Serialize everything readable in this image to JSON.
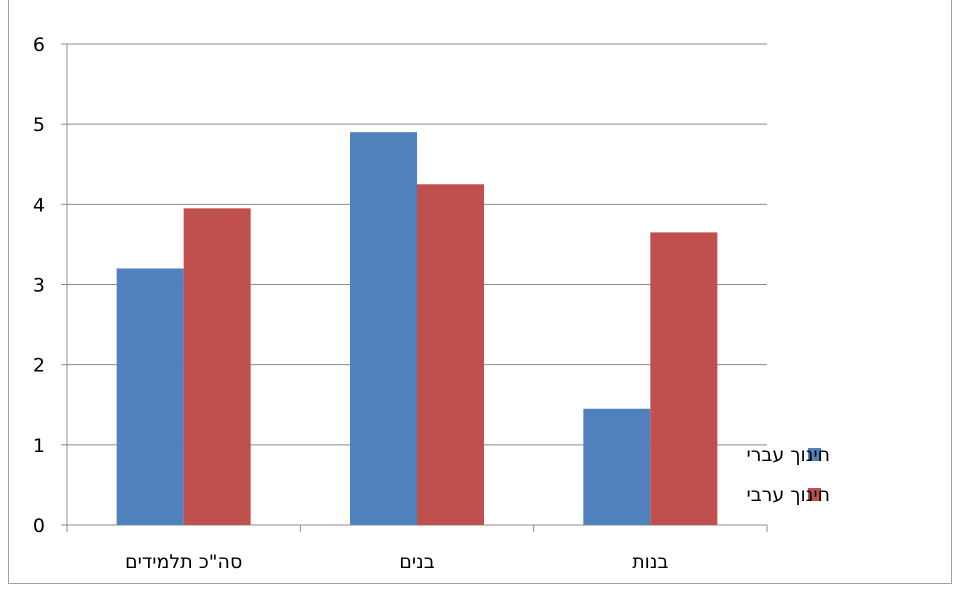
{
  "chart_data": {
    "type": "bar",
    "categories": [
      "סה\"כ תלמידים",
      "בנים",
      "בנות"
    ],
    "series": [
      {
        "name": "חינוך עברי",
        "color": "#4F81BD",
        "values": [
          3.2,
          4.9,
          1.45
        ]
      },
      {
        "name": "חינוך ערבי",
        "color": "#C0504D",
        "values": [
          3.95,
          4.25,
          3.65
        ]
      }
    ],
    "yticks": [
      "0",
      "1",
      "2",
      "3",
      "4",
      "5",
      "6"
    ],
    "ylim": [
      0,
      6
    ],
    "grid": true,
    "legend_position": "right"
  }
}
